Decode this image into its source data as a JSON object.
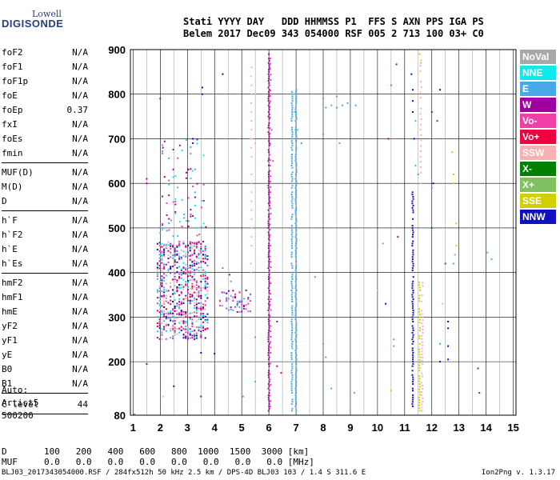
{
  "logo": {
    "line1": "Lowell",
    "line2": "DIGISONDE"
  },
  "header": {
    "labels": [
      "Stati",
      "YYYY",
      "DAY",
      "DDD",
      "HHMMSS",
      "P1",
      "FFS",
      "S",
      "AXN",
      "PPS",
      "IGA",
      "PS"
    ],
    "values": [
      "Belem",
      "2017",
      "Dec09",
      "343",
      "054000",
      "RSF",
      "005",
      "2",
      "713",
      "100",
      "03+",
      "C0"
    ]
  },
  "params": {
    "group1": [
      {
        "name": "foF2",
        "value": "N/A"
      },
      {
        "name": "foF1",
        "value": "N/A"
      },
      {
        "name": "foF1p",
        "value": "N/A"
      },
      {
        "name": "foE",
        "value": "N/A"
      },
      {
        "name": "foEp",
        "value": "0.37"
      },
      {
        "name": "fxI",
        "value": "N/A"
      },
      {
        "name": "foEs",
        "value": "N/A"
      },
      {
        "name": "fmin",
        "value": "N/A"
      }
    ],
    "group2": [
      {
        "name": "MUF(D)",
        "value": "N/A"
      },
      {
        "name": "M(D)",
        "value": "N/A"
      },
      {
        "name": "D",
        "value": "N/A"
      }
    ],
    "group3": [
      {
        "name": "h`F",
        "value": "N/A"
      },
      {
        "name": "h`F2",
        "value": "N/A"
      },
      {
        "name": "h`E",
        "value": "N/A"
      },
      {
        "name": "h`Es",
        "value": "N/A"
      }
    ],
    "group4": [
      {
        "name": "hmF2",
        "value": "N/A"
      },
      {
        "name": "hmF1",
        "value": "N/A"
      },
      {
        "name": "hmE",
        "value": "N/A"
      },
      {
        "name": "yF2",
        "value": "N/A"
      },
      {
        "name": "yF1",
        "value": "N/A"
      },
      {
        "name": "yE",
        "value": "N/A"
      },
      {
        "name": "B0",
        "value": "N/A"
      },
      {
        "name": "B1",
        "value": "N/A"
      }
    ],
    "clevel": {
      "name": "C-level",
      "value": "44"
    }
  },
  "auto": {
    "line1": "Auto:",
    "line2": "Artist5",
    "line3": "500200"
  },
  "legend": [
    {
      "label": "NoVal",
      "color": "#a8a8a8"
    },
    {
      "label": "NNE",
      "color": "#10e8f0"
    },
    {
      "label": "E",
      "color": "#48a8e8"
    },
    {
      "label": "W",
      "color": "#a000a0"
    },
    {
      "label": "Vo-",
      "color": "#f040a8"
    },
    {
      "label": "Vo+",
      "color": "#f00040"
    },
    {
      "label": "SSW",
      "color": "#f8b0b0"
    },
    {
      "label": "X-",
      "color": "#008000"
    },
    {
      "label": "X+",
      "color": "#80c060"
    },
    {
      "label": "SSE",
      "color": "#d0d000"
    },
    {
      "label": "NNW",
      "color": "#1010c0"
    }
  ],
  "bottom": {
    "d_label": "D",
    "d_values": [
      "100",
      "200",
      "400",
      "600",
      "800",
      "1000",
      "1500",
      "3000"
    ],
    "d_unit": "[km]",
    "muf_label": "MUF",
    "muf_values": [
      "0.0",
      "0.0",
      "0.0",
      "0.0",
      "0.0",
      "0.0",
      "0.0",
      "0.0"
    ],
    "muf_unit": "[MHz]"
  },
  "footer": "BLJ03_2017343054000.RSF / 284fx512h 50 kHz 2.5 km / DPS-4D BLJ03 103 / 1.4 S 311.6 E",
  "footer_version": "Ion2Png v. 1.3.17",
  "chart_data": {
    "type": "scatter",
    "x_ticks": [
      1,
      2,
      3,
      4,
      5,
      6,
      7,
      8,
      9,
      10,
      11,
      12,
      13,
      14,
      15
    ],
    "y_ticks": [
      80,
      200,
      300,
      400,
      500,
      600,
      700,
      800,
      900
    ],
    "xlim": [
      0.9,
      15.1
    ],
    "ylim": [
      80,
      900
    ],
    "grid": true,
    "legend_position": "right",
    "traces": [
      {
        "f": 6.0,
        "h0": 90,
        "h1": 890,
        "code": "W",
        "step": 5
      },
      {
        "f": 6.05,
        "h0": 100,
        "h1": 880,
        "code": "Vo-",
        "step": 12
      },
      {
        "f": 6.85,
        "h0": 90,
        "h1": 810,
        "code": "E",
        "step": 5
      },
      {
        "f": 7.0,
        "h0": 90,
        "h1": 810,
        "code": "E",
        "step": 5
      },
      {
        "f": 11.3,
        "h0": 100,
        "h1": 590,
        "code": "NNW",
        "step": 5
      },
      {
        "f": 11.55,
        "h0": 90,
        "h1": 380,
        "code": "SSE",
        "step": 6
      },
      {
        "f": 11.65,
        "h0": 90,
        "h1": 380,
        "code": "SSW",
        "step": 7
      },
      {
        "f": 11.6,
        "h0": 600,
        "h1": 880,
        "code": "SSW",
        "step": 12
      },
      {
        "f": 5.35,
        "h0": 400,
        "h1": 860,
        "code": "SSW",
        "step": 20
      }
    ],
    "clusters": [
      {
        "f0": 1.9,
        "f1": 3.8,
        "h0": 250,
        "h1": 470,
        "codes": [
          "Vo-",
          "W",
          "E",
          "Vo+",
          "NNE",
          "NNW",
          "SSW"
        ],
        "count": 700
      },
      {
        "f0": 4.2,
        "f1": 5.4,
        "h0": 310,
        "h1": 360,
        "codes": [
          "W",
          "Vo-",
          "E"
        ],
        "count": 60
      },
      {
        "f0": 2.0,
        "f1": 3.7,
        "h0": 480,
        "h1": 700,
        "codes": [
          "W",
          "E",
          "Vo-",
          "NNE"
        ],
        "count": 80
      }
    ],
    "points": [
      {
        "f": 4.3,
        "h": 845,
        "code": "NNW"
      },
      {
        "f": 3.55,
        "h": 815,
        "code": "NNW"
      },
      {
        "f": 3.55,
        "h": 800,
        "code": "NNW"
      },
      {
        "f": 2.0,
        "h": 790,
        "code": "W"
      },
      {
        "f": 1.5,
        "h": 610,
        "code": "W"
      },
      {
        "f": 1.5,
        "h": 600,
        "code": "W"
      },
      {
        "f": 2.1,
        "h": 680,
        "code": "W"
      },
      {
        "f": 3.2,
        "h": 700,
        "code": "NNW"
      },
      {
        "f": 3.2,
        "h": 690,
        "code": "NNW"
      },
      {
        "f": 4.0,
        "h": 218,
        "code": "NNW"
      },
      {
        "f": 3.5,
        "h": 220,
        "code": "NNW"
      },
      {
        "f": 2.5,
        "h": 145,
        "code": "NNW"
      },
      {
        "f": 1.5,
        "h": 195,
        "code": "W"
      },
      {
        "f": 2.1,
        "h": 122,
        "code": "SSW"
      },
      {
        "f": 3.5,
        "h": 122,
        "code": "W"
      },
      {
        "f": 1.05,
        "h": 82,
        "code": "E"
      },
      {
        "f": 5.05,
        "h": 122,
        "code": "E"
      },
      {
        "f": 5.5,
        "h": 155,
        "code": "E"
      },
      {
        "f": 5.5,
        "h": 255,
        "code": "E"
      },
      {
        "f": 6.3,
        "h": 190,
        "code": "W"
      },
      {
        "f": 6.45,
        "h": 175,
        "code": "Vo+"
      },
      {
        "f": 6.3,
        "h": 290,
        "code": "W"
      },
      {
        "f": 8.0,
        "h": 790,
        "code": "E"
      },
      {
        "f": 8.1,
        "h": 770,
        "code": "E"
      },
      {
        "f": 8.3,
        "h": 775,
        "code": "E"
      },
      {
        "f": 8.5,
        "h": 770,
        "code": "E"
      },
      {
        "f": 8.7,
        "h": 775,
        "code": "E"
      },
      {
        "f": 8.9,
        "h": 780,
        "code": "E"
      },
      {
        "f": 9.2,
        "h": 775,
        "code": "E"
      },
      {
        "f": 8.5,
        "h": 795,
        "code": "E"
      },
      {
        "f": 8.0,
        "h": 710,
        "code": "E"
      },
      {
        "f": 8.6,
        "h": 690,
        "code": "E"
      },
      {
        "f": 7.2,
        "h": 690,
        "code": "E"
      },
      {
        "f": 7.0,
        "h": 540,
        "code": "E"
      },
      {
        "f": 7.7,
        "h": 390,
        "code": "E"
      },
      {
        "f": 8.0,
        "h": 240,
        "code": "E"
      },
      {
        "f": 8.1,
        "h": 210,
        "code": "E"
      },
      {
        "f": 8.3,
        "h": 140,
        "code": "E"
      },
      {
        "f": 9.15,
        "h": 130,
        "code": "E"
      },
      {
        "f": 10.0,
        "h": 360,
        "code": "SSW"
      },
      {
        "f": 10.2,
        "h": 465,
        "code": "X+"
      },
      {
        "f": 10.3,
        "h": 330,
        "code": "NNW"
      },
      {
        "f": 10.6,
        "h": 250,
        "code": "E"
      },
      {
        "f": 10.6,
        "h": 235,
        "code": "E"
      },
      {
        "f": 10.5,
        "h": 820,
        "code": "Vo-"
      },
      {
        "f": 10.7,
        "h": 867,
        "code": "W"
      },
      {
        "f": 10.75,
        "h": 480,
        "code": "W"
      },
      {
        "f": 10.4,
        "h": 700,
        "code": "W"
      },
      {
        "f": 10.5,
        "h": 135,
        "code": "SSE"
      },
      {
        "f": 11.25,
        "h": 845,
        "code": "NNW"
      },
      {
        "f": 11.3,
        "h": 810,
        "code": "NNW"
      },
      {
        "f": 11.3,
        "h": 785,
        "code": "NNW"
      },
      {
        "f": 11.3,
        "h": 760,
        "code": "NNW"
      },
      {
        "f": 11.4,
        "h": 740,
        "code": "E"
      },
      {
        "f": 11.35,
        "h": 700,
        "code": "NNW"
      },
      {
        "f": 12.0,
        "h": 760,
        "code": "W"
      },
      {
        "f": 12.2,
        "h": 740,
        "code": "W"
      },
      {
        "f": 12.3,
        "h": 810,
        "code": "NNW"
      },
      {
        "f": 12.0,
        "h": 590,
        "code": "E"
      },
      {
        "f": 12.05,
        "h": 600,
        "code": "NNW"
      },
      {
        "f": 12.0,
        "h": 500,
        "code": "X-"
      },
      {
        "f": 12.5,
        "h": 420,
        "code": "X-"
      },
      {
        "f": 12.4,
        "h": 330,
        "code": "SSW"
      },
      {
        "f": 12.6,
        "h": 290,
        "code": "NNW"
      },
      {
        "f": 12.6,
        "h": 275,
        "code": "NNW"
      },
      {
        "f": 12.6,
        "h": 235,
        "code": "NNW"
      },
      {
        "f": 12.3,
        "h": 240,
        "code": "E"
      },
      {
        "f": 12.6,
        "h": 205,
        "code": "NNW"
      },
      {
        "f": 12.3,
        "h": 200,
        "code": "NNW"
      },
      {
        "f": 12.75,
        "h": 670,
        "code": "SSE"
      },
      {
        "f": 12.8,
        "h": 620,
        "code": "SSE"
      },
      {
        "f": 12.8,
        "h": 600,
        "code": "SSE"
      },
      {
        "f": 12.9,
        "h": 460,
        "code": "SSE"
      },
      {
        "f": 12.9,
        "h": 510,
        "code": "SSE"
      },
      {
        "f": 12.85,
        "h": 440,
        "code": "X+"
      },
      {
        "f": 12.8,
        "h": 420,
        "code": "E"
      },
      {
        "f": 13.7,
        "h": 185,
        "code": "X-"
      },
      {
        "f": 13.75,
        "h": 130,
        "code": "X-"
      },
      {
        "f": 14.05,
        "h": 445,
        "code": "E"
      },
      {
        "f": 14.2,
        "h": 430,
        "code": "E"
      },
      {
        "f": 11.55,
        "h": 890,
        "code": "SSE"
      },
      {
        "f": 11.6,
        "h": 870,
        "code": "SSE"
      },
      {
        "f": 11.4,
        "h": 640,
        "code": "E"
      },
      {
        "f": 11.5,
        "h": 620,
        "code": "E"
      },
      {
        "f": 6.1,
        "h": 720,
        "code": "Vo-"
      },
      {
        "f": 6.15,
        "h": 650,
        "code": "Vo-"
      },
      {
        "f": 5.4,
        "h": 700,
        "code": "SSW"
      },
      {
        "f": 5.5,
        "h": 690,
        "code": "SSW"
      },
      {
        "f": 5.5,
        "h": 800,
        "code": "SSW"
      },
      {
        "f": 4.55,
        "h": 395,
        "code": "W"
      },
      {
        "f": 4.6,
        "h": 380,
        "code": "E"
      },
      {
        "f": 4.3,
        "h": 410,
        "code": "Vo-"
      },
      {
        "f": 6.9,
        "h": 800,
        "code": "NNE"
      },
      {
        "f": 6.95,
        "h": 760,
        "code": "NNE"
      },
      {
        "f": 7.05,
        "h": 720,
        "code": "NNE"
      }
    ]
  }
}
